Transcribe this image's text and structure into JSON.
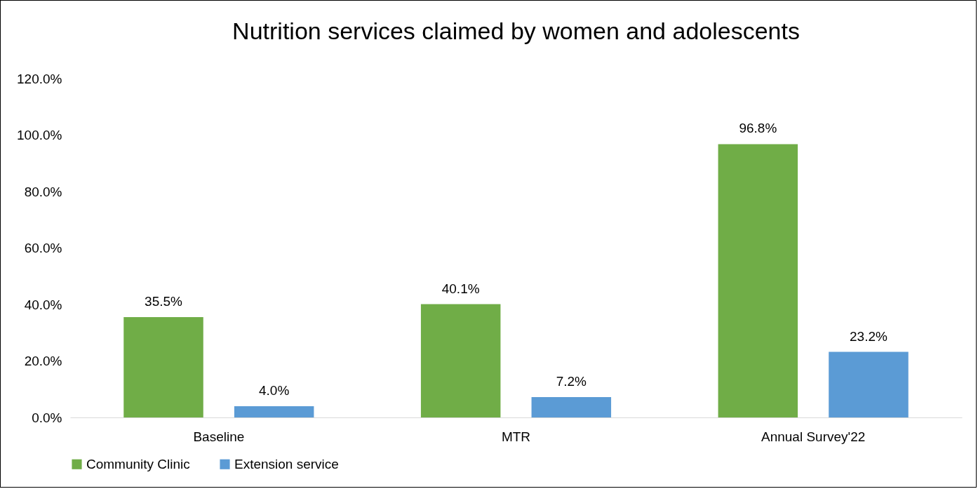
{
  "chart_data": {
    "type": "bar",
    "title": "Nutrition services claimed by women and adolescents",
    "categories": [
      "Baseline",
      "MTR",
      "Annual Survey'22"
    ],
    "series": [
      {
        "name": "Community Clinic",
        "color": "#70ad47",
        "values": [
          35.5,
          40.1,
          96.8
        ],
        "value_labels": [
          "35.5%",
          "40.1%",
          "96.8%"
        ]
      },
      {
        "name": "Extension service",
        "color": "#5b9bd5",
        "values": [
          4.0,
          7.2,
          23.2
        ],
        "value_labels": [
          "4.0%",
          "7.2%",
          "23.2%"
        ]
      }
    ],
    "ylim": [
      0,
      120
    ],
    "yticks": [
      {
        "value": 0,
        "label": "0.0%"
      },
      {
        "value": 20,
        "label": "20.0%"
      },
      {
        "value": 40,
        "label": "40.0%"
      },
      {
        "value": 60,
        "label": "60.0%"
      },
      {
        "value": 80,
        "label": "80.0%"
      },
      {
        "value": 100,
        "label": "100.0%"
      },
      {
        "value": 120,
        "label": "120.0%"
      }
    ],
    "grid": false,
    "legend": "bottom"
  }
}
